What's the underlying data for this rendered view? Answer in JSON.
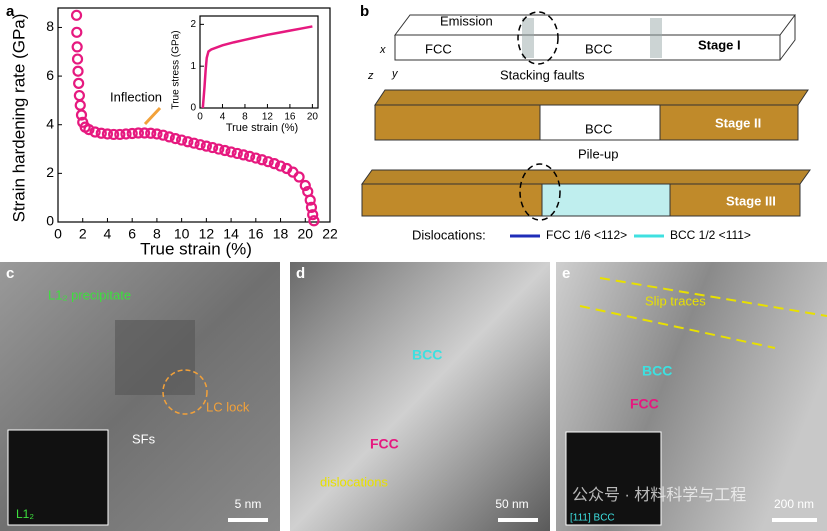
{
  "chart_data": {
    "type": "scatter",
    "panel_label": "a",
    "xlabel": "True strain (%)",
    "ylabel": "Strain hardening rate (GPa)",
    "annotation": "Inflection",
    "color": "#e6197f",
    "x": [
      1.5,
      1.52,
      1.55,
      1.58,
      1.62,
      1.67,
      1.73,
      1.8,
      1.9,
      2.0,
      2.2,
      2.5,
      3,
      3.5,
      4,
      4.5,
      5,
      5.5,
      6,
      6.5,
      7,
      7.5,
      8,
      8.5,
      9,
      9.5,
      10,
      10.5,
      11,
      11.5,
      12,
      12.5,
      13,
      13.5,
      14,
      14.5,
      15,
      15.5,
      16,
      16.5,
      17,
      17.5,
      18,
      18.5,
      19,
      19.5,
      20,
      20.2,
      20.4,
      20.5,
      20.6,
      20.7
    ],
    "values": [
      8.5,
      7.8,
      7.2,
      6.7,
      6.2,
      5.7,
      5.2,
      4.8,
      4.4,
      4.1,
      3.9,
      3.8,
      3.7,
      3.65,
      3.62,
      3.6,
      3.6,
      3.62,
      3.64,
      3.66,
      3.66,
      3.65,
      3.62,
      3.57,
      3.5,
      3.43,
      3.37,
      3.3,
      3.24,
      3.18,
      3.12,
      3.06,
      3.0,
      2.94,
      2.88,
      2.82,
      2.76,
      2.7,
      2.63,
      2.56,
      2.48,
      2.4,
      2.3,
      2.2,
      2.05,
      1.85,
      1.5,
      1.25,
      0.9,
      0.6,
      0.3,
      0.05
    ],
    "xlim": [
      0,
      22
    ],
    "ylim": [
      0,
      8.8
    ],
    "xticks": [
      0,
      2,
      4,
      6,
      8,
      10,
      12,
      14,
      16,
      18,
      20,
      22
    ],
    "yticks": [
      0,
      2,
      4,
      6,
      8
    ],
    "inset": {
      "type": "line",
      "xlabel": "True strain (%)",
      "ylabel": "True stress (GPa)",
      "color": "#e6197f",
      "x": [
        0.5,
        0.8,
        1,
        1.2,
        1.5,
        2,
        4,
        6,
        8,
        10,
        12,
        14,
        16,
        18,
        20
      ],
      "values": [
        0,
        0.5,
        0.9,
        1.2,
        1.35,
        1.4,
        1.5,
        1.57,
        1.63,
        1.69,
        1.75,
        1.8,
        1.85,
        1.9,
        1.95
      ],
      "xlim": [
        0,
        21
      ],
      "ylim": [
        0,
        2.2
      ],
      "xticks": [
        0,
        4,
        8,
        12,
        16,
        20
      ],
      "yticks": [
        0,
        1,
        2
      ]
    }
  },
  "panels": {
    "b": {
      "label": "b",
      "emission": "Emission",
      "fcc": "FCC",
      "bcc1": "BCC",
      "stage1": "Stage I",
      "axis_x": "x",
      "axis_z": "z",
      "axis_y": "y",
      "stacking_faults": "Stacking faults",
      "bcc2": "BCC",
      "stage2": "Stage II",
      "pileup": "Pile-up",
      "stage3": "Stage III",
      "dislocations": "Dislocations:",
      "legend_fcc": "FCC 1/6 <112>",
      "legend_bcc": "BCC 1/2 <111>"
    },
    "c": {
      "label": "c",
      "precipitate": "L1₂ precipitate",
      "lc_lock": "LC lock",
      "sfs": "SFs",
      "scale": "5 nm",
      "fft": "L1₂"
    },
    "d": {
      "label": "d",
      "bcc": "BCC",
      "fcc": "FCC",
      "dislocations": "dislocations",
      "scale": "50 nm"
    },
    "e": {
      "label": "e",
      "slip": "Slip traces",
      "bcc": "BCC",
      "fcc": "FCC",
      "scale": "200 nm",
      "zone": "[111] BCC",
      "watermark": "公众号 · 材料科学与工程"
    }
  }
}
